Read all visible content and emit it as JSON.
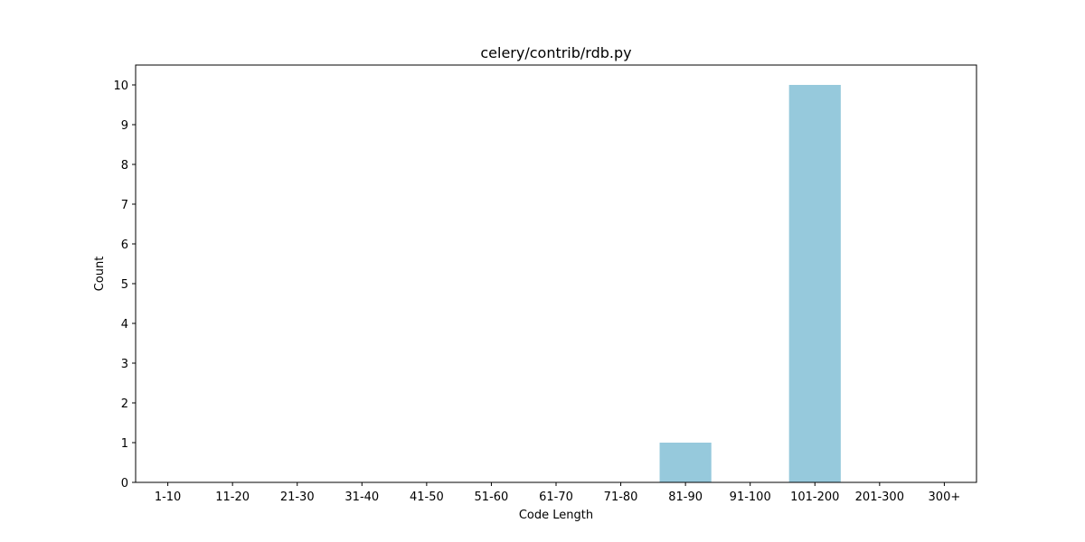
{
  "chart_data": {
    "type": "bar",
    "title": "celery/contrib/rdb.py",
    "xlabel": "Code Length",
    "ylabel": "Count",
    "categories": [
      "1-10",
      "11-20",
      "21-30",
      "31-40",
      "41-50",
      "51-60",
      "61-70",
      "71-80",
      "81-90",
      "91-100",
      "101-200",
      "201-300",
      "300+"
    ],
    "values": [
      0,
      0,
      0,
      0,
      0,
      0,
      0,
      0,
      1,
      0,
      10,
      0,
      0
    ],
    "ylim": [
      0,
      10.5
    ],
    "yticks": [
      0,
      1,
      2,
      3,
      4,
      5,
      6,
      7,
      8,
      9,
      10
    ],
    "bar_color": "#96c9dc",
    "grid": false,
    "legend": false
  }
}
